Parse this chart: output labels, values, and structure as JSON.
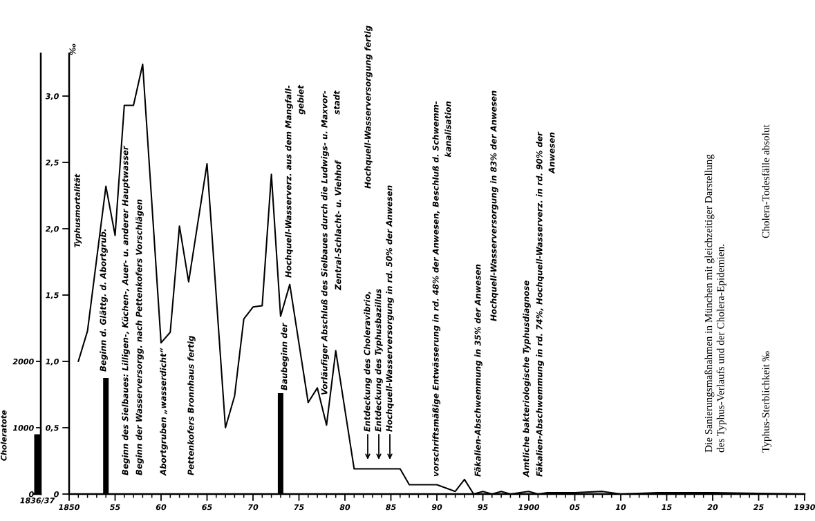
{
  "chart_data": [
    {
      "type": "bar",
      "categories": [
        "1836/37"
      ],
      "values": [
        900
      ],
      "color": "#000000",
      "ylim": [
        0,
        6640
      ],
      "tick_labels": "x"
    },
    {
      "type": "line",
      "title": "Die Sanierungsmaßnahmen in München mit gleichzeitiger Darstellung\ndes Typhus-Verlaufs und der Cholera-Epidemien.",
      "ylabel": "Choleratote",
      "y2label": "Typhusmortalität",
      "xlim": [
        1850,
        1930
      ],
      "xticks": [
        1850,
        {
          "value": 1851,
          "label": null
        },
        {
          "value": 1852,
          "label": null
        },
        {
          "value": 1853,
          "label": null
        },
        {
          "value": 1854,
          "label": null
        },
        {
          "value": 1855,
          "label": "55"
        },
        {
          "value": 1856,
          "label": null
        },
        {
          "value": 1857,
          "label": null
        },
        {
          "value": 1858,
          "label": null
        },
        {
          "value": 1859,
          "label": null
        },
        {
          "value": 1860,
          "label": "60"
        },
        {
          "value": 1861,
          "label": null
        },
        {
          "value": 1862,
          "label": null
        },
        {
          "value": 1863,
          "label": null
        },
        {
          "value": 1864,
          "label": null
        },
        {
          "value": 1865,
          "label": "65"
        },
        {
          "value": 1866,
          "label": null
        },
        {
          "value": 1867,
          "label": null
        },
        {
          "value": 1868,
          "label": null
        },
        {
          "value": 1869,
          "label": null
        },
        {
          "value": 1870,
          "label": "70"
        },
        {
          "value": 1871,
          "label": null
        },
        {
          "value": 1872,
          "label": null
        },
        {
          "value": 1873,
          "label": null
        },
        {
          "value": 1874,
          "label": null
        },
        {
          "value": 1875,
          "label": "75"
        },
        {
          "value": 1876,
          "label": null
        },
        {
          "value": 1877,
          "label": null
        },
        {
          "value": 1878,
          "label": null
        },
        {
          "value": 1879,
          "label": null
        },
        {
          "value": 1880,
          "label": "80"
        },
        {
          "value": 1881,
          "label": null
        },
        {
          "value": 1882,
          "label": null
        },
        {
          "value": 1883,
          "label": null
        },
        {
          "value": 1884,
          "label": null
        },
        {
          "value": 1885,
          "label": "85"
        },
        {
          "value": 1886,
          "label": null
        },
        {
          "value": 1887,
          "label": null
        },
        {
          "value": 1888,
          "label": null
        },
        {
          "value": 1889,
          "label": null
        },
        {
          "value": 1890,
          "label": "90"
        },
        {
          "value": 1891,
          "label": null
        },
        {
          "value": 1892,
          "label": null
        },
        {
          "value": 1893,
          "label": null
        },
        {
          "value": 1894,
          "label": null
        },
        {
          "value": 1895,
          "label": "95"
        },
        {
          "value": 1896,
          "label": null
        },
        {
          "value": 1897,
          "label": null
        },
        {
          "value": 1898,
          "label": null
        },
        {
          "value": 1899,
          "label": null
        },
        1900,
        {
          "value": 1901,
          "label": null
        },
        {
          "value": 1902,
          "label": null
        },
        {
          "value": 1903,
          "label": null
        },
        {
          "value": 1904,
          "label": null
        },
        {
          "value": 1905,
          "label": "05"
        },
        {
          "value": 1906,
          "label": null
        },
        {
          "value": 1907,
          "label": null
        },
        {
          "value": 1908,
          "label": null
        },
        {
          "value": 1909,
          "label": null
        },
        {
          "value": 1910,
          "label": "10"
        },
        {
          "value": 1911,
          "label": null
        },
        {
          "value": 1912,
          "label": null
        },
        {
          "value": 1913,
          "label": null
        },
        {
          "value": 1914,
          "label": null
        },
        {
          "value": 1915,
          "label": "15"
        },
        {
          "value": 1916,
          "label": null
        },
        {
          "value": 1917,
          "label": null
        },
        {
          "value": 1918,
          "label": null
        },
        {
          "value": 1919,
          "label": null
        },
        {
          "value": 1920,
          "label": "20"
        },
        {
          "value": 1921,
          "label": null
        },
        {
          "value": 1922,
          "label": null
        },
        {
          "value": 1923,
          "label": null
        },
        {
          "value": 1924,
          "label": null
        },
        {
          "value": 1925,
          "label": "25"
        },
        {
          "value": 1926,
          "label": null
        },
        {
          "value": 1927,
          "label": null
        },
        {
          "value": 1928,
          "label": null
        },
        {
          "value": 1929,
          "label": null
        },
        1930
      ],
      "ylim": [
        0,
        6640
      ],
      "yticks": [
        0,
        1000,
        2000
      ],
      "y2lim": [
        0,
        3.32
      ],
      "y2ticks": [
        0,
        {
          "value": 0.5,
          "label": "0,5"
        },
        {
          "value": 1,
          "label": "1,0"
        },
        {
          "value": 1.5,
          "label": "1,5"
        },
        {
          "value": 2,
          "label": "2,0"
        },
        {
          "value": 2.5,
          "label": "2,5"
        },
        {
          "value": 3,
          "label": "3,0"
        }
      ],
      "series": [
        {
          "type": "line",
          "axis": "y2",
          "color": "#000000",
          "x": [
            1851,
            1852,
            1854,
            1855,
            1856,
            1857,
            1858,
            1860,
            1861,
            1862,
            1863,
            1865,
            1867,
            1868,
            1869,
            1870,
            1871,
            1872,
            1873,
            1874,
            1876,
            1877,
            1878,
            1879,
            1881,
            1886,
            1887,
            1890,
            1892,
            1893,
            1894,
            1895,
            1896,
            1897,
            1898,
            1900,
            1901,
            1902,
            1905,
            1908,
            1910,
            1914,
            1920,
            1930
          ],
          "values": [
            1.0,
            1.23,
            2.32,
            1.95,
            2.93,
            2.93,
            3.24,
            1.14,
            1.22,
            2.02,
            1.6,
            2.49,
            0.5,
            0.74,
            1.32,
            1.41,
            1.42,
            2.41,
            1.34,
            1.58,
            0.69,
            0.8,
            0.52,
            1.08,
            0.19,
            0.19,
            0.07,
            0.07,
            0.02,
            0.11,
            0.0,
            0.02,
            0.0,
            0.02,
            0.0,
            0.02,
            0.0,
            0.01,
            0.01,
            0.02,
            0.0,
            0.01,
            0.01,
            0.0
          ]
        },
        {
          "type": "bar",
          "color": "#000000",
          "x": [
            1854,
            1873
          ],
          "values": [
            1750,
            1520
          ]
        }
      ],
      "annotations": [
        "Beginn d. Glättg. d. Abortgrub.",
        "Beginn des Sielbaues: Lilligen-, Küchen-, Auer- u. anderer Hauptwasser",
        "Beginn der Wasserversorgg. nach Pettenkofers Vorschlägen",
        "Abortgruben „wasserdicht“",
        "Pettenkofers Bronnhaus fertig",
        "Baubeginn der",
        "Hochquell-Wasserverz. aus dem Mangfall-\ngebiet",
        "Vorläufiger Abschluß des Sielbaues durch die Ludwigs- u. Maxvor-\nstadt",
        "Zentral-Schlacht- u. Viehhof",
        "Hochquell-Wasserversorgung fertig",
        "vorschriftsmäßige Entwässerung in rd. 48% der Anwesen, Beschluß d. Schwemm-\nkanalisation",
        "Fäkalien-Abschwemmung in 35% der Anwesen",
        "Hochquell-Wasserversorgung in 83% der Anwesen",
        "Amtliche bakteriologische Typhusdiagnose",
        "Fäkalien-Abschwemmung in rd. 74%, Hochquell-Wasserverz. in rd. 90% der\nAnwesen",
        "‰",
        "Entdeckung des Choleravibrio,",
        "Entdeckung des Typhusbazillus",
        "Hochquell-Wasserversorgung in rd. 50% der Anwesen",
        "Typhus-Sterblichkeit ‰",
        "Cholera-Todesfälle absolut"
      ]
    }
  ]
}
